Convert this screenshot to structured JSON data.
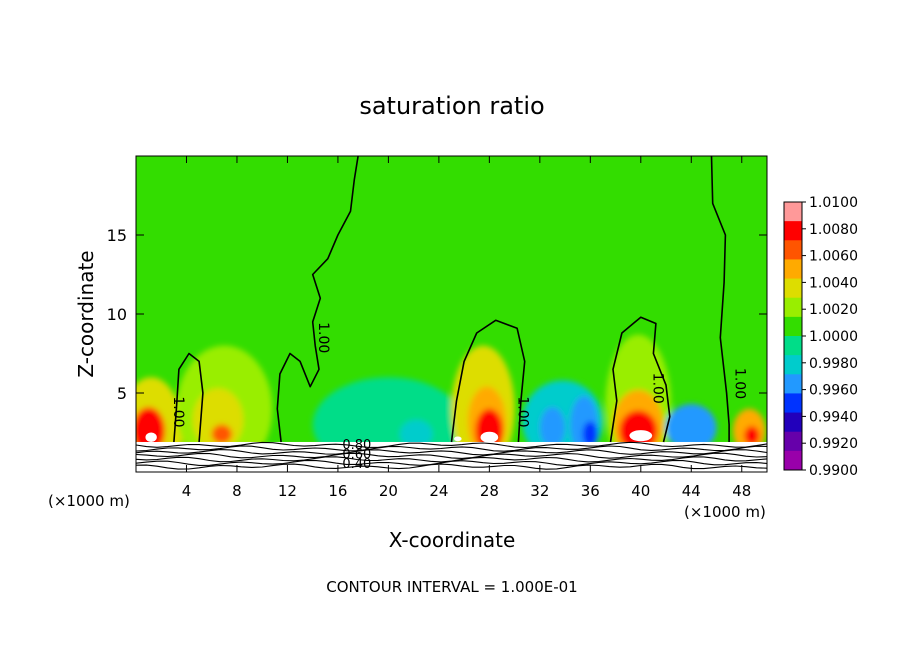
{
  "chart_data": {
    "type": "heatmap",
    "title": "saturation ratio",
    "xlabel": "X-coordinate",
    "ylabel": "Z-coordinate",
    "x_unit_left": "(×1000 m)",
    "x_unit_right": "(×1000 m)",
    "footer": "CONTOUR INTERVAL = 1.000E-01",
    "xlim": [
      0,
      50
    ],
    "ylim": [
      0,
      20
    ],
    "x_ticks": [
      4,
      8,
      12,
      16,
      20,
      24,
      28,
      32,
      36,
      40,
      44,
      48
    ],
    "x_tick_labels": [
      "4",
      "8",
      "12",
      "16",
      "20",
      "24",
      "28",
      "32",
      "36",
      "40",
      "44",
      "48"
    ],
    "y_ticks": [
      5,
      10,
      15
    ],
    "y_tick_labels": [
      "5",
      "10",
      "15"
    ],
    "colorbar": {
      "levels": [
        "1.0100",
        "1.0080",
        "1.0060",
        "1.0040",
        "1.0020",
        "1.0000",
        "0.9980",
        "0.9960",
        "0.9940",
        "0.9920",
        "0.9900"
      ],
      "colors": [
        "#ff9999",
        "#ff0000",
        "#ff5500",
        "#ffaa00",
        "#dddd00",
        "#99ee00",
        "#33dd00",
        "#00dd88",
        "#00cccc",
        "#2299ff",
        "#0033ff",
        "#2200bb",
        "#6600aa",
        "#9900aa"
      ]
    },
    "contour_labels": [
      {
        "text": "1.00",
        "x": 3.0,
        "y": 3.8
      },
      {
        "text": "1.00",
        "x": 14.5,
        "y": 8.5
      },
      {
        "text": "1.00",
        "x": 30.3,
        "y": 3.8
      },
      {
        "text": "1.00",
        "x": 41.0,
        "y": 5.3
      },
      {
        "text": "1.00",
        "x": 47.5,
        "y": 5.6
      },
      {
        "text": "0.80",
        "x": 17.5,
        "y": 1.45
      },
      {
        "text": "0.60",
        "x": 17.5,
        "y": 0.85
      },
      {
        "text": "0.40",
        "x": 17.5,
        "y": 0.25
      }
    ],
    "contours_one": [
      [
        [
          3.0,
          1.9
        ],
        [
          3.2,
          4.0
        ],
        [
          3.4,
          6.5
        ],
        [
          4.2,
          7.5
        ],
        [
          5.0,
          7.0
        ],
        [
          5.3,
          5.0
        ],
        [
          5.0,
          1.9
        ]
      ],
      [
        [
          11.5,
          1.9
        ],
        [
          11.2,
          4.0
        ],
        [
          11.4,
          6.2
        ],
        [
          12.2,
          7.5
        ],
        [
          13.0,
          7.0
        ],
        [
          13.8,
          5.4
        ],
        [
          14.5,
          6.5
        ],
        [
          14.2,
          8.0
        ],
        [
          14.0,
          9.5
        ],
        [
          14.6,
          11.0
        ],
        [
          14.0,
          12.5
        ],
        [
          15.2,
          13.5
        ],
        [
          16.0,
          15.0
        ],
        [
          17.0,
          16.5
        ],
        [
          17.3,
          18.5
        ],
        [
          17.6,
          20.0
        ]
      ],
      [
        [
          25.0,
          1.9
        ],
        [
          25.4,
          4.5
        ],
        [
          26.0,
          7.0
        ],
        [
          27.0,
          8.8
        ],
        [
          28.5,
          9.6
        ],
        [
          30.2,
          9.1
        ],
        [
          30.8,
          7.0
        ],
        [
          30.5,
          4.5
        ],
        [
          30.3,
          1.9
        ]
      ],
      [
        [
          37.6,
          1.9
        ],
        [
          38.1,
          4.5
        ],
        [
          37.8,
          6.5
        ],
        [
          38.5,
          8.8
        ],
        [
          40.0,
          9.8
        ],
        [
          41.2,
          9.4
        ],
        [
          41.0,
          7.5
        ],
        [
          42.0,
          5.5
        ],
        [
          42.3,
          3.5
        ],
        [
          41.8,
          1.9
        ]
      ],
      [
        [
          45.6,
          20.0
        ],
        [
          45.7,
          17.0
        ],
        [
          46.7,
          15.0
        ],
        [
          46.6,
          12.0
        ],
        [
          46.3,
          8.5
        ],
        [
          46.8,
          5.0
        ],
        [
          47.0,
          3.0
        ],
        [
          47.0,
          1.9
        ]
      ]
    ],
    "regions": [
      {
        "cx": 1.2,
        "cy": 2.5,
        "rx": 2.5,
        "ry": 3.5,
        "color": "#dddd00"
      },
      {
        "cx": 1.0,
        "cy": 2.6,
        "rx": 1.3,
        "ry": 1.5,
        "color": "#ff0000"
      },
      {
        "cx": 7.0,
        "cy": 4.0,
        "rx": 3.8,
        "ry": 4.0,
        "color": "#99ee00"
      },
      {
        "cx": 6.5,
        "cy": 3.3,
        "rx": 2.0,
        "ry": 2.0,
        "color": "#dddd00"
      },
      {
        "cx": 6.8,
        "cy": 2.4,
        "rx": 0.8,
        "ry": 0.6,
        "color": "#ff5500"
      },
      {
        "cx": 20.0,
        "cy": 3.0,
        "rx": 6.0,
        "ry": 3.0,
        "color": "#00dd88"
      },
      {
        "cx": 22.2,
        "cy": 2.4,
        "rx": 1.3,
        "ry": 0.9,
        "color": "#00cccc"
      },
      {
        "cx": 27.5,
        "cy": 4.0,
        "rx": 2.5,
        "ry": 4.0,
        "color": "#dddd00"
      },
      {
        "cx": 27.8,
        "cy": 3.2,
        "rx": 1.5,
        "ry": 2.2,
        "color": "#ffaa00"
      },
      {
        "cx": 28.0,
        "cy": 2.6,
        "rx": 1.1,
        "ry": 1.4,
        "color": "#ff0000"
      },
      {
        "cx": 33.8,
        "cy": 3.2,
        "rx": 3.2,
        "ry": 2.6,
        "color": "#00cccc"
      },
      {
        "cx": 33.0,
        "cy": 2.8,
        "rx": 1.0,
        "ry": 1.3,
        "color": "#2299ff"
      },
      {
        "cx": 35.5,
        "cy": 3.0,
        "rx": 1.1,
        "ry": 1.8,
        "color": "#2299ff"
      },
      {
        "cx": 36.0,
        "cy": 2.4,
        "rx": 0.6,
        "ry": 0.8,
        "color": "#0033ff"
      },
      {
        "cx": 39.8,
        "cy": 4.2,
        "rx": 2.6,
        "ry": 4.5,
        "color": "#99ee00"
      },
      {
        "cx": 39.8,
        "cy": 3.0,
        "rx": 2.0,
        "ry": 2.2,
        "color": "#ffaa00"
      },
      {
        "cx": 39.8,
        "cy": 2.6,
        "rx": 1.5,
        "ry": 1.3,
        "color": "#ff0000"
      },
      {
        "cx": 44.0,
        "cy": 2.8,
        "rx": 2.0,
        "ry": 1.5,
        "color": "#2299ff"
      },
      {
        "cx": 48.6,
        "cy": 2.6,
        "rx": 1.3,
        "ry": 1.4,
        "color": "#ffaa00"
      },
      {
        "cx": 48.8,
        "cy": 2.3,
        "rx": 0.6,
        "ry": 0.6,
        "color": "#ff0000"
      }
    ],
    "cloud_spots": [
      {
        "cx": 1.2,
        "cy": 2.2,
        "rx": 0.45,
        "ry": 0.3
      },
      {
        "cx": 28.0,
        "cy": 2.2,
        "rx": 0.7,
        "ry": 0.35
      },
      {
        "cx": 40.0,
        "cy": 2.3,
        "rx": 0.9,
        "ry": 0.35
      },
      {
        "cx": 25.5,
        "cy": 2.1,
        "rx": 0.3,
        "ry": 0.15
      }
    ],
    "background_color": "#33dd00",
    "ground_top": 1.9
  }
}
